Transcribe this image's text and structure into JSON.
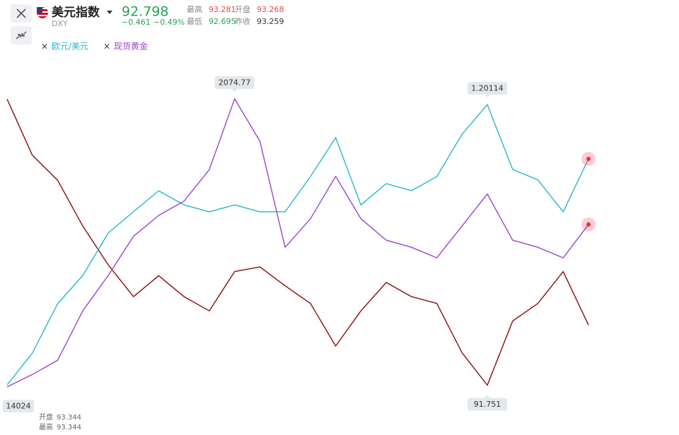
{
  "header": {
    "name": "美元指数",
    "code": "DXY",
    "price": "92.798",
    "change": "−0.461",
    "change_pct": "−0.49%",
    "stats": [
      {
        "label": "最高",
        "value": "93.281",
        "tone": "up"
      },
      {
        "label": "开盘",
        "value": "93.268",
        "tone": "up"
      },
      {
        "label": "最低",
        "value": "92.695",
        "tone": "down"
      },
      {
        "label": "昨收",
        "value": "93.259",
        "tone": "flat"
      }
    ]
  },
  "chart_data": {
    "type": "line",
    "series": [
      {
        "name": "美元指数",
        "color": "#8b0a0a",
        "legend": false,
        "callout": "min",
        "ylim": [
          91.6,
          96.4
        ],
        "values": [
          95.98,
          95.15,
          94.78,
          94.1,
          93.53,
          93.06,
          93.37,
          93.06,
          92.85,
          93.43,
          93.5,
          93.22,
          92.96,
          92.33,
          92.85,
          93.27,
          93.06,
          92.96,
          92.23,
          91.751,
          92.7,
          92.96,
          93.43,
          92.64
        ]
      },
      {
        "name": "欧元/美元",
        "color": "#26b8c4",
        "legend": true,
        "callout": "max",
        "end_marker": true,
        "ylim": [
          1.074,
          1.216
        ],
        "values": [
          1.0786,
          1.0925,
          1.1141,
          1.1265,
          1.145,
          1.1543,
          1.1635,
          1.1573,
          1.1543,
          1.1573,
          1.1543,
          1.1543,
          1.1697,
          1.1867,
          1.1573,
          1.1666,
          1.1635,
          1.1697,
          1.1882,
          1.20114,
          1.1728,
          1.1682,
          1.1543,
          1.1774
        ]
      },
      {
        "name": "现货黄金",
        "color": "#9b42d0",
        "legend": true,
        "callout": "max",
        "end_marker": true,
        "ylim": [
          1452,
          2134
        ],
        "values": [
          1470,
          1496,
          1526,
          1630,
          1704,
          1786,
          1830,
          1860,
          1926,
          2074.77,
          1986,
          1763,
          1823,
          1912,
          1823,
          1778,
          1763,
          1741,
          1808,
          1875,
          1778,
          1763,
          1741,
          1811
        ]
      }
    ],
    "crosshair": {
      "date": "14024",
      "tooltip": [
        {
          "label": "开盘",
          "value": "93.344"
        },
        {
          "label": "最高",
          "value": "93.344"
        }
      ]
    }
  }
}
